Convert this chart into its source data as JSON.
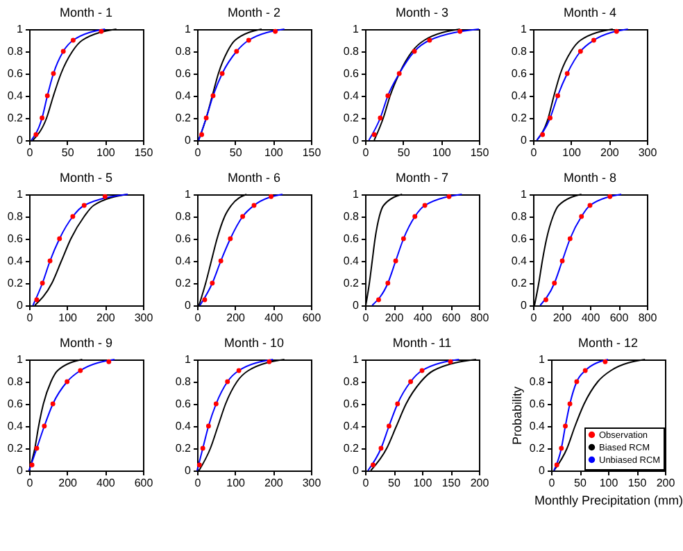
{
  "chart_data": [
    {
      "type": "line",
      "title": "Month - 1",
      "xlim": [
        0,
        150
      ],
      "xticks": [
        0,
        50,
        100,
        150
      ],
      "ylim": [
        0,
        1
      ],
      "yticks": [
        0,
        0.2,
        0.4,
        0.6,
        0.8,
        1
      ],
      "series": [
        {
          "type": "scatter",
          "marker": "circle",
          "color": "#ff0000",
          "x": [
            9,
            17,
            24,
            32,
            45,
            58,
            95
          ],
          "values": [
            0.05,
            0.2,
            0.4,
            0.6,
            0.8,
            0.9,
            0.98
          ]
        },
        {
          "color": "#000000",
          "x": [
            5,
            23,
            32,
            42,
            57,
            70,
            115
          ],
          "values": [
            0,
            0.2,
            0.4,
            0.6,
            0.8,
            0.9,
            1
          ]
        },
        {
          "color": "#0000ff",
          "x": [
            3,
            17,
            24,
            32,
            45,
            58,
            100
          ],
          "values": [
            0,
            0.2,
            0.4,
            0.6,
            0.8,
            0.9,
            1
          ]
        }
      ]
    },
    {
      "type": "line",
      "title": "Month - 2",
      "xlim": [
        0,
        150
      ],
      "xticks": [
        0,
        50,
        100,
        150
      ],
      "ylim": [
        0,
        1
      ],
      "yticks": [
        0,
        0.2,
        0.4,
        0.6,
        0.8,
        1
      ],
      "series": [
        {
          "type": "scatter",
          "marker": "circle",
          "color": "#ff0000",
          "x": [
            6,
            12,
            21,
            33,
            52,
            68,
            103
          ],
          "values": [
            0.05,
            0.2,
            0.4,
            0.6,
            0.8,
            0.9,
            0.98
          ]
        },
        {
          "color": "#000000",
          "x": [
            2,
            12,
            20,
            28,
            40,
            50,
            85
          ],
          "values": [
            0,
            0.2,
            0.4,
            0.6,
            0.8,
            0.9,
            1
          ]
        },
        {
          "color": "#0000ff",
          "x": [
            2,
            12,
            21,
            33,
            52,
            68,
            115
          ],
          "values": [
            0,
            0.2,
            0.4,
            0.6,
            0.8,
            0.9,
            1
          ]
        }
      ]
    },
    {
      "type": "line",
      "title": "Month - 3",
      "xlim": [
        0,
        150
      ],
      "xticks": [
        0,
        50,
        100,
        150
      ],
      "ylim": [
        0,
        1
      ],
      "yticks": [
        0,
        0.2,
        0.4,
        0.6,
        0.8,
        1
      ],
      "series": [
        {
          "type": "scatter",
          "marker": "circle",
          "color": "#ff0000",
          "x": [
            12,
            20,
            30,
            45,
            65,
            85,
            125
          ],
          "values": [
            0.05,
            0.2,
            0.4,
            0.6,
            0.8,
            0.9,
            0.98
          ]
        },
        {
          "color": "#000000",
          "x": [
            12,
            24,
            33,
            45,
            62,
            78,
            125
          ],
          "values": [
            0,
            0.2,
            0.4,
            0.6,
            0.8,
            0.9,
            1
          ]
        },
        {
          "color": "#0000ff",
          "x": [
            5,
            20,
            30,
            45,
            65,
            85,
            150
          ],
          "values": [
            0,
            0.2,
            0.4,
            0.6,
            0.8,
            0.9,
            1
          ]
        }
      ]
    },
    {
      "type": "line",
      "title": "Month - 4",
      "xlim": [
        0,
        300
      ],
      "xticks": [
        0,
        100,
        200,
        300
      ],
      "ylim": [
        0,
        1
      ],
      "yticks": [
        0,
        0.2,
        0.4,
        0.6,
        0.8,
        1
      ],
      "series": [
        {
          "type": "scatter",
          "marker": "circle",
          "color": "#ff0000",
          "x": [
            25,
            45,
            65,
            90,
            125,
            160,
            220
          ],
          "values": [
            0.05,
            0.2,
            0.4,
            0.6,
            0.8,
            0.9,
            0.98
          ]
        },
        {
          "color": "#000000",
          "x": [
            10,
            40,
            55,
            72,
            100,
            125,
            210
          ],
          "values": [
            0,
            0.2,
            0.4,
            0.6,
            0.8,
            0.9,
            1
          ]
        },
        {
          "color": "#0000ff",
          "x": [
            10,
            45,
            65,
            90,
            125,
            160,
            250
          ],
          "values": [
            0,
            0.2,
            0.4,
            0.6,
            0.8,
            0.9,
            1
          ]
        }
      ]
    },
    {
      "type": "line",
      "title": "Month - 5",
      "xlim": [
        0,
        300
      ],
      "xticks": [
        0,
        100,
        200,
        300
      ],
      "ylim": [
        0,
        1
      ],
      "yticks": [
        0,
        0.2,
        0.4,
        0.6,
        0.8,
        1
      ],
      "series": [
        {
          "type": "scatter",
          "marker": "circle",
          "color": "#ff0000",
          "x": [
            20,
            35,
            55,
            80,
            115,
            145,
            200
          ],
          "values": [
            0.05,
            0.2,
            0.4,
            0.6,
            0.8,
            0.9,
            0.98
          ]
        },
        {
          "color": "#000000",
          "x": [
            15,
            60,
            85,
            110,
            145,
            170,
            260
          ],
          "values": [
            0,
            0.2,
            0.4,
            0.6,
            0.8,
            0.9,
            1
          ]
        },
        {
          "color": "#0000ff",
          "x": [
            10,
            35,
            55,
            80,
            115,
            145,
            260
          ],
          "values": [
            0,
            0.2,
            0.4,
            0.6,
            0.8,
            0.9,
            1
          ]
        }
      ]
    },
    {
      "type": "line",
      "title": "Month - 6",
      "xlim": [
        0,
        600
      ],
      "xticks": [
        0,
        200,
        400,
        600
      ],
      "ylim": [
        0,
        1
      ],
      "yticks": [
        0,
        0.2,
        0.4,
        0.6,
        0.8,
        1
      ],
      "series": [
        {
          "type": "scatter",
          "marker": "circle",
          "color": "#ff0000",
          "x": [
            40,
            80,
            125,
            175,
            240,
            300,
            390
          ],
          "values": [
            0.05,
            0.2,
            0.4,
            0.6,
            0.8,
            0.9,
            0.98
          ]
        },
        {
          "color": "#000000",
          "x": [
            10,
            45,
            75,
            105,
            145,
            180,
            260
          ],
          "values": [
            0,
            0.2,
            0.4,
            0.6,
            0.8,
            0.9,
            1
          ]
        },
        {
          "color": "#0000ff",
          "x": [
            15,
            80,
            125,
            175,
            240,
            300,
            450
          ],
          "values": [
            0,
            0.2,
            0.4,
            0.6,
            0.8,
            0.9,
            1
          ]
        }
      ]
    },
    {
      "type": "line",
      "title": "Month - 7",
      "xlim": [
        0,
        800
      ],
      "xticks": [
        0,
        200,
        400,
        600,
        800
      ],
      "ylim": [
        0,
        1
      ],
      "yticks": [
        0,
        0.2,
        0.4,
        0.6,
        0.8,
        1
      ],
      "series": [
        {
          "type": "scatter",
          "marker": "circle",
          "color": "#ff0000",
          "x": [
            95,
            160,
            215,
            270,
            350,
            420,
            590
          ],
          "values": [
            0.05,
            0.2,
            0.4,
            0.6,
            0.8,
            0.9,
            0.98
          ]
        },
        {
          "color": "#000000",
          "x": [
            5,
            30,
            50,
            70,
            100,
            130,
            260
          ],
          "values": [
            0,
            0.2,
            0.4,
            0.6,
            0.8,
            0.9,
            1
          ]
        },
        {
          "color": "#0000ff",
          "x": [
            50,
            160,
            215,
            270,
            350,
            420,
            680
          ],
          "values": [
            0,
            0.2,
            0.4,
            0.6,
            0.8,
            0.9,
            1
          ]
        }
      ]
    },
    {
      "type": "line",
      "title": "Month - 8",
      "xlim": [
        0,
        800
      ],
      "xticks": [
        0,
        200,
        400,
        600,
        800
      ],
      "ylim": [
        0,
        1
      ],
      "yticks": [
        0,
        0.2,
        0.4,
        0.6,
        0.8,
        1
      ],
      "series": [
        {
          "type": "scatter",
          "marker": "circle",
          "color": "#ff0000",
          "x": [
            90,
            150,
            205,
            260,
            340,
            400,
            540
          ],
          "values": [
            0.05,
            0.2,
            0.4,
            0.6,
            0.8,
            0.9,
            0.98
          ]
        },
        {
          "color": "#000000",
          "x": [
            10,
            40,
            65,
            95,
            140,
            180,
            340
          ],
          "values": [
            0,
            0.2,
            0.4,
            0.6,
            0.8,
            0.9,
            1
          ]
        },
        {
          "color": "#0000ff",
          "x": [
            50,
            150,
            205,
            260,
            340,
            400,
            620
          ],
          "values": [
            0,
            0.2,
            0.4,
            0.6,
            0.8,
            0.9,
            1
          ]
        }
      ]
    },
    {
      "type": "line",
      "title": "Month - 9",
      "xlim": [
        0,
        600
      ],
      "xticks": [
        0,
        200,
        400,
        600
      ],
      "ylim": [
        0,
        1
      ],
      "yticks": [
        0,
        0.2,
        0.4,
        0.6,
        0.8,
        1
      ],
      "series": [
        {
          "type": "scatter",
          "marker": "circle",
          "color": "#ff0000",
          "x": [
            15,
            40,
            80,
            125,
            200,
            270,
            420
          ],
          "values": [
            0.05,
            0.2,
            0.4,
            0.6,
            0.8,
            0.9,
            0.98
          ]
        },
        {
          "color": "#000000",
          "x": [
            0,
            30,
            50,
            75,
            115,
            150,
            280
          ],
          "values": [
            0,
            0.2,
            0.4,
            0.6,
            0.8,
            0.9,
            1
          ]
        },
        {
          "color": "#0000ff",
          "x": [
            0,
            40,
            80,
            125,
            200,
            270,
            450
          ],
          "values": [
            0,
            0.2,
            0.4,
            0.6,
            0.8,
            0.9,
            1
          ]
        }
      ]
    },
    {
      "type": "line",
      "title": "Month - 10",
      "xlim": [
        0,
        300
      ],
      "xticks": [
        0,
        100,
        200,
        300
      ],
      "ylim": [
        0,
        1
      ],
      "yticks": [
        0,
        0.2,
        0.4,
        0.6,
        0.8,
        1
      ],
      "series": [
        {
          "type": "scatter",
          "marker": "circle",
          "color": "#ff0000",
          "x": [
            6,
            15,
            30,
            50,
            80,
            110,
            190
          ],
          "values": [
            0.05,
            0.2,
            0.4,
            0.6,
            0.8,
            0.9,
            0.98
          ]
        },
        {
          "color": "#000000",
          "x": [
            5,
            35,
            55,
            75,
            105,
            135,
            230
          ],
          "values": [
            0,
            0.2,
            0.4,
            0.6,
            0.8,
            0.9,
            1
          ]
        },
        {
          "color": "#0000ff",
          "x": [
            0,
            15,
            30,
            50,
            80,
            110,
            200
          ],
          "values": [
            0,
            0.2,
            0.4,
            0.6,
            0.8,
            0.9,
            1
          ]
        }
      ]
    },
    {
      "type": "line",
      "title": "Month - 11",
      "xlim": [
        0,
        200
      ],
      "xticks": [
        0,
        50,
        100,
        150,
        200
      ],
      "ylim": [
        0,
        1
      ],
      "yticks": [
        0,
        0.2,
        0.4,
        0.6,
        0.8,
        1
      ],
      "series": [
        {
          "type": "scatter",
          "marker": "circle",
          "color": "#ff0000",
          "x": [
            14,
            28,
            42,
            57,
            80,
            100,
            150
          ],
          "values": [
            0.05,
            0.2,
            0.4,
            0.6,
            0.8,
            0.9,
            0.98
          ]
        },
        {
          "color": "#000000",
          "x": [
            10,
            38,
            55,
            72,
            98,
            120,
            195
          ],
          "values": [
            0,
            0.2,
            0.4,
            0.6,
            0.8,
            0.9,
            1
          ]
        },
        {
          "color": "#0000ff",
          "x": [
            5,
            28,
            42,
            57,
            80,
            100,
            165
          ],
          "values": [
            0,
            0.2,
            0.4,
            0.6,
            0.8,
            0.9,
            1
          ]
        }
      ]
    },
    {
      "type": "line",
      "title": "Month - 12",
      "xlabel": "Monthly Precipitation (mm)",
      "ylabel": "Probability",
      "legend": "bottom right",
      "xlim": [
        0,
        200
      ],
      "xticks": [
        0,
        50,
        100,
        150,
        200
      ],
      "ylim": [
        0,
        1
      ],
      "yticks": [
        0,
        0.2,
        0.4,
        0.6,
        0.8,
        1
      ],
      "series": [
        {
          "name": "Observation",
          "type": "scatter",
          "marker": "circle",
          "color": "#ff0000",
          "x": [
            10,
            18,
            25,
            33,
            45,
            60,
            95
          ],
          "values": [
            0.05,
            0.2,
            0.4,
            0.6,
            0.8,
            0.9,
            0.98
          ]
        },
        {
          "name": "Biased RCM",
          "color": "#000000",
          "x": [
            5,
            28,
            42,
            58,
            82,
            105,
            165
          ],
          "values": [
            0,
            0.2,
            0.4,
            0.6,
            0.8,
            0.9,
            1
          ]
        },
        {
          "name": "Unbiased RCM",
          "color": "#0000ff",
          "x": [
            5,
            18,
            25,
            33,
            45,
            60,
            100
          ],
          "values": [
            0,
            0.2,
            0.4,
            0.6,
            0.8,
            0.9,
            1
          ]
        }
      ]
    }
  ]
}
